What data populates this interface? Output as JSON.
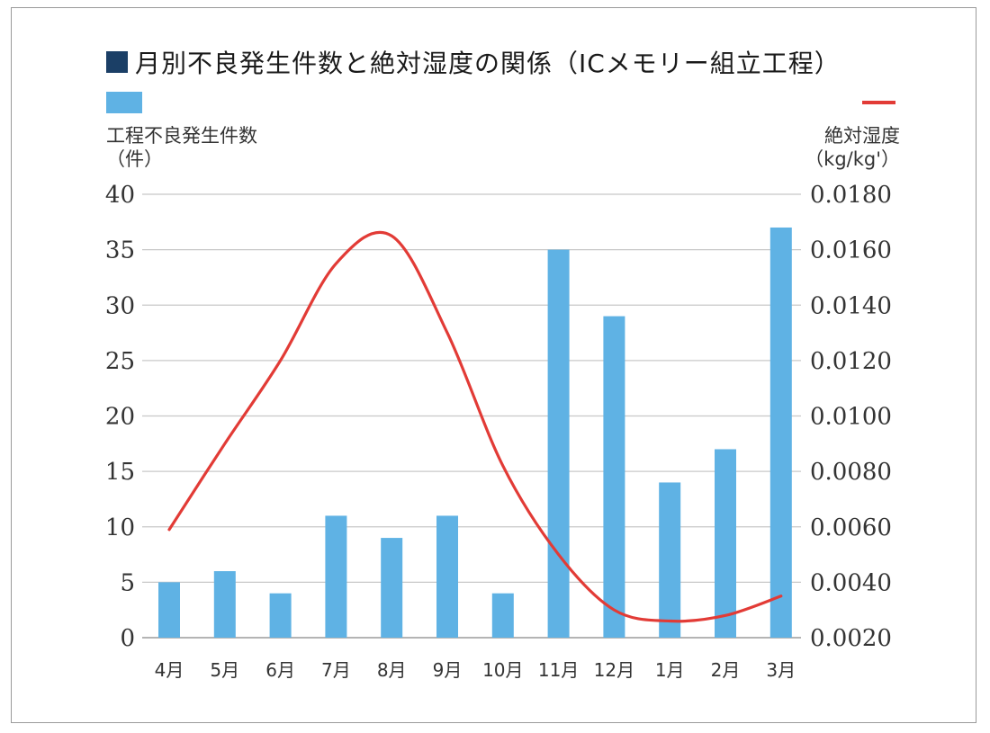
{
  "title": "月別不良発生件数と絶対湿度の関係（ICメモリー組立工程）",
  "legend": {
    "left_axis_title": "工程不良発生件数",
    "left_axis_unit": "（件）",
    "right_axis_title": "絶対湿度",
    "right_axis_unit": "（kg/kg'）"
  },
  "colors": {
    "bar": "#5fb2e4",
    "line": "#e23b36",
    "title_square": "#1b3f66"
  },
  "chart_data": {
    "type": "bar",
    "categories": [
      "4月",
      "5月",
      "6月",
      "7月",
      "8月",
      "9月",
      "10月",
      "11月",
      "12月",
      "1月",
      "2月",
      "3月"
    ],
    "series": [
      {
        "type": "bar",
        "axis": "left",
        "values": [
          5,
          6,
          4,
          11,
          9,
          11,
          4,
          35,
          29,
          14,
          17,
          37
        ]
      },
      {
        "type": "line",
        "axis": "right",
        "values": [
          0.0059,
          0.009,
          0.012,
          0.0155,
          0.0165,
          0.013,
          0.0082,
          0.005,
          0.003,
          0.0026,
          0.0028,
          0.0035
        ]
      }
    ],
    "y_left": {
      "lim": [
        0,
        40
      ],
      "ticks": [
        "0",
        "5",
        "10",
        "15",
        "20",
        "25",
        "30",
        "35",
        "40"
      ]
    },
    "y_right": {
      "lim": [
        0.002,
        0.018
      ],
      "ticks": [
        "0.0020",
        "0.0040",
        "0.0060",
        "0.0080",
        "0.0100",
        "0.0120",
        "0.0140",
        "0.0160",
        "0.0180"
      ]
    },
    "grid": true
  }
}
